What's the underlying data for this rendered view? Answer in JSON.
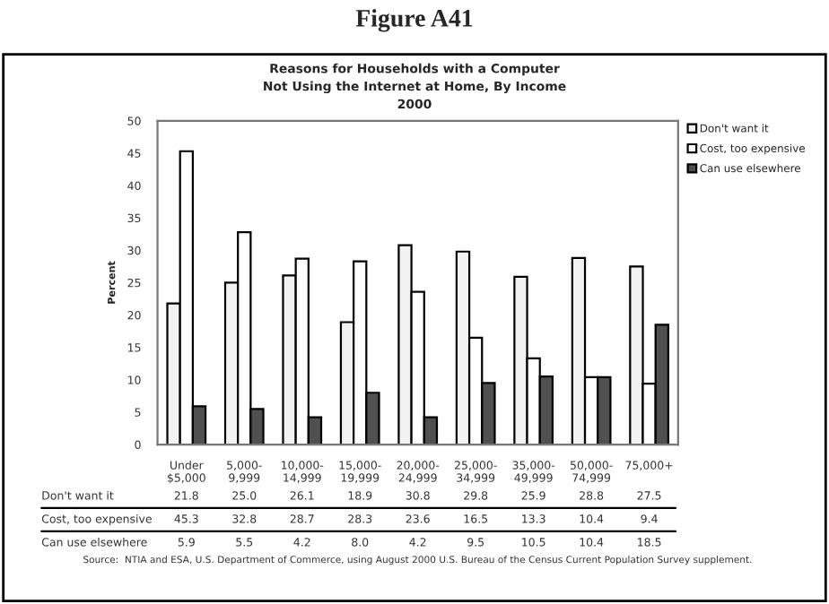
{
  "chart_data": {
    "type": "bar",
    "title": "Figure A41",
    "subtitle": "Reasons for Households with a Computer\nNot Using the Internet at Home, By Income\n2000",
    "ylabel": "Percent",
    "categories": [
      "Under\n$5,000",
      "5,000-\n9,999",
      "10,000-\n14,999",
      "15,000-\n19,999",
      "20,000-\n24,999",
      "25,000-\n34,999",
      "35,000-\n49,999",
      "50,000-\n74,999",
      "75,000+"
    ],
    "series": [
      {
        "name": "Don't want it",
        "color": "#f2f2f2",
        "values": [
          21.8,
          25.0,
          26.1,
          18.9,
          30.8,
          29.8,
          25.9,
          28.8,
          27.5
        ],
        "value_labels": [
          "21.8",
          "25.0",
          "26.1",
          "18.9",
          "30.8",
          "29.8",
          "25.9",
          "28.8",
          "27.5"
        ]
      },
      {
        "name": "Cost, too expensive",
        "color": "#ffffff",
        "values": [
          45.3,
          32.8,
          28.7,
          28.3,
          23.6,
          16.5,
          13.3,
          10.4,
          9.4
        ],
        "value_labels": [
          "45.3",
          "32.8",
          "28.7",
          "28.3",
          "23.6",
          "16.5",
          "13.3",
          "10.4",
          "9.4"
        ]
      },
      {
        "name": "Can use elsewhere",
        "color": "#505050",
        "values": [
          5.9,
          5.5,
          4.2,
          8.0,
          4.2,
          9.5,
          10.5,
          10.4,
          18.5
        ],
        "value_labels": [
          "5.9",
          "5.5",
          "4.2",
          "8.0",
          "4.2",
          "9.5",
          "10.5",
          "10.4",
          "18.5"
        ]
      }
    ],
    "ylim": [
      0,
      50
    ],
    "yticks": [
      0,
      5,
      10,
      15,
      20,
      25,
      30,
      35,
      40,
      45,
      50
    ],
    "grid": false,
    "legend": "right",
    "annotations": [
      "Source:  NTIA and ESA, U.S. Department of Commerce, using August 2000 U.S. Bureau of the Census Current Population Survey supplement."
    ]
  }
}
